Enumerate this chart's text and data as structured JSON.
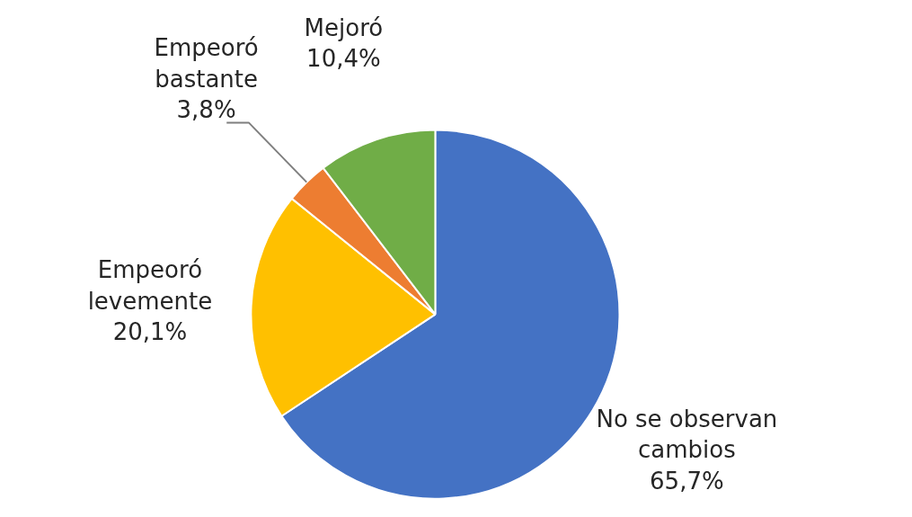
{
  "chart_data": {
    "type": "pie",
    "categories": [
      "No se observan cambios",
      "Empeoró levemente",
      "Empeoró bastante",
      "Mejoró"
    ],
    "values": [
      65.7,
      20.1,
      3.8,
      10.4
    ],
    "colors": [
      "#4472c4",
      "#ffc000",
      "#ed7d31",
      "#70ad47"
    ],
    "value_labels": [
      "65,7%",
      "20,1%",
      "3,8%",
      "10,4%"
    ],
    "legend": false
  }
}
